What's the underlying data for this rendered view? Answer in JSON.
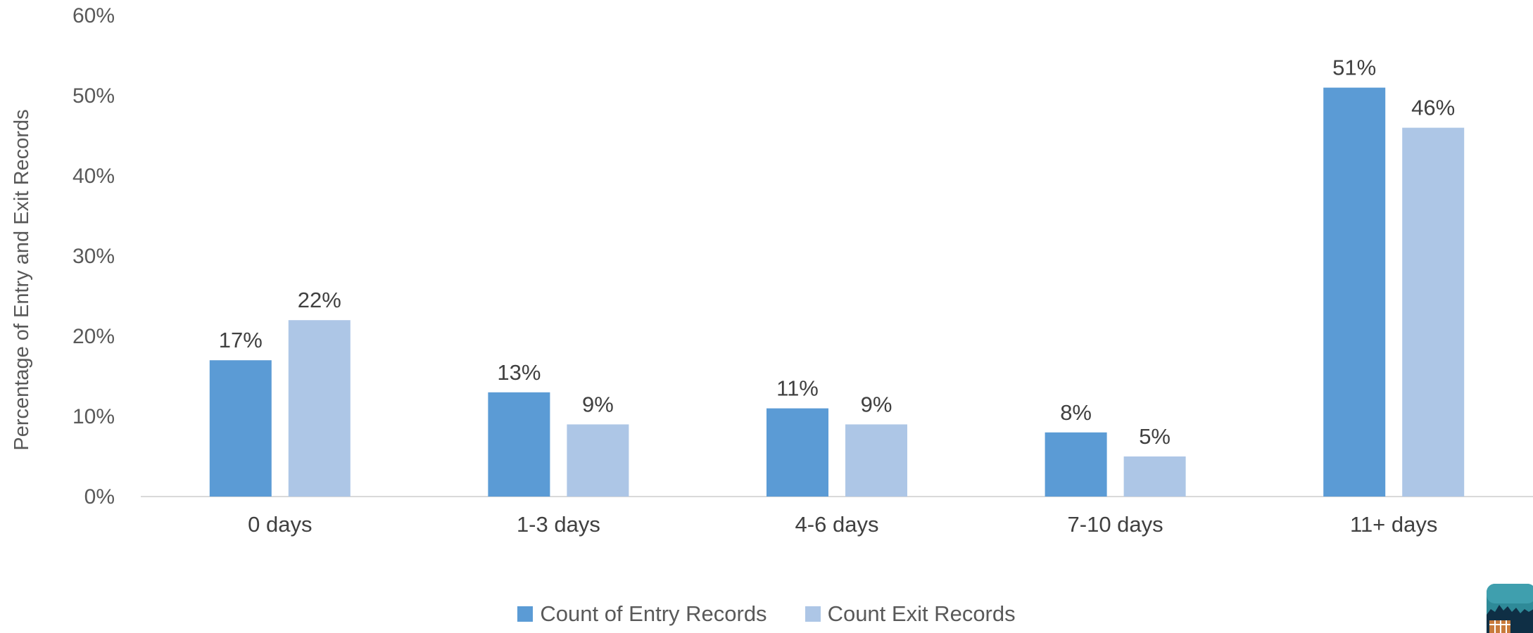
{
  "chart_data": {
    "type": "bar",
    "title": "",
    "xlabel": "",
    "ylabel": "Percentage of Entry and Exit Records",
    "ylim": [
      0,
      60
    ],
    "yticks": [
      "0%",
      "10%",
      "20%",
      "30%",
      "40%",
      "50%",
      "60%"
    ],
    "grid": false,
    "legend_position": "bottom",
    "categories": [
      "0 days",
      "1-3 days",
      "4-6 days",
      "7-10 days",
      "11+ days"
    ],
    "series": [
      {
        "name": "Count of Entry Records",
        "color": "#5b9bd5",
        "values": [
          17,
          13,
          11,
          8,
          51
        ],
        "labels": [
          "17%",
          "13%",
          "11%",
          "8%",
          "51%"
        ]
      },
      {
        "name": "Count Exit Records",
        "color": "#adc6e6",
        "values": [
          22,
          9,
          9,
          5,
          46
        ],
        "labels": [
          "22%",
          "9%",
          "9%",
          "5%",
          "46%"
        ]
      }
    ]
  }
}
